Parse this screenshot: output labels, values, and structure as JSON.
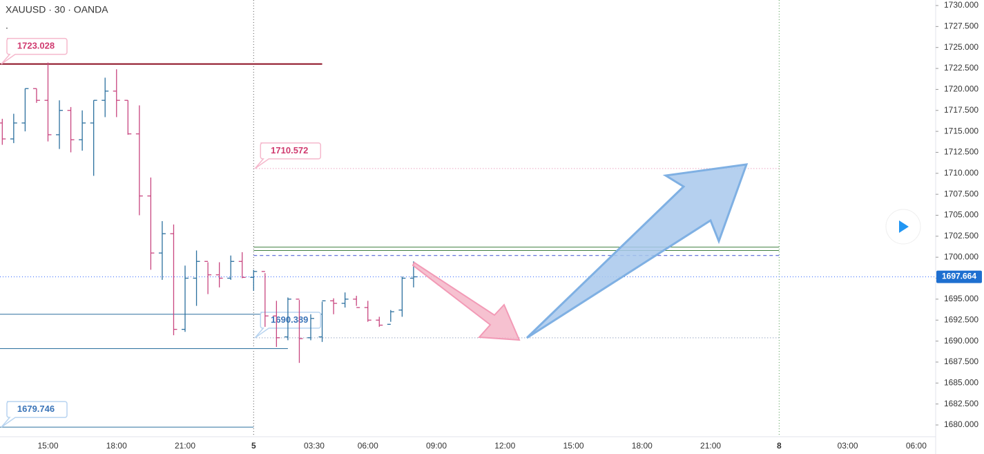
{
  "chart_data": {
    "type": "ohlc",
    "title": "XAUUSD · 30 · OANDA",
    "subtitle": ".",
    "up_color": "#2a6f9e",
    "down_color": "#c8457f",
    "bars": {
      "open": [
        1716.0,
        1714.1,
        1716.0,
        1720.1,
        1718.7,
        1714.6,
        1717.5,
        1714.0,
        1716.0,
        1718.7,
        1719.8,
        1718.7,
        1714.7,
        1707.3,
        1700.5,
        1702.8,
        1691.4,
        1697.5,
        1699.5,
        1697.9,
        1697.5,
        1699.5,
        1697.6,
        1698.3,
        1693.0,
        1690.5,
        1695.0,
        1690.4,
        1690.5,
        1694.8,
        1694.5,
        1695.0,
        1694.0,
        1692.5,
        1692.0,
        1693.7,
        1697.5
      ],
      "high": [
        1716.5,
        1717.1,
        1720.1,
        1720.1,
        1723.2,
        1718.7,
        1717.9,
        1717.5,
        1718.7,
        1721.4,
        1722.4,
        1718.7,
        1718.1,
        1709.5,
        1704.3,
        1703.9,
        1699.0,
        1700.8,
        1699.4,
        1699.4,
        1700.2,
        1700.6,
        1698.5,
        1698.1,
        1694.8,
        1695.2,
        1694.9,
        1693.2,
        1694.7,
        1695.1,
        1695.8,
        1695.4,
        1694.8,
        1692.9,
        1693.7,
        1697.7,
        1699.5
      ],
      "low": [
        1713.4,
        1713.6,
        1715.0,
        1718.4,
        1713.8,
        1712.9,
        1712.5,
        1712.7,
        1709.7,
        1716.7,
        1716.7,
        1714.6,
        1705.0,
        1698.5,
        1697.3,
        1690.7,
        1691.1,
        1694.2,
        1695.6,
        1696.4,
        1697.3,
        1697.5,
        1696.0,
        1691.7,
        1689.3,
        1690.1,
        1687.4,
        1690.1,
        1689.9,
        1693.2,
        1694.0,
        1694.2,
        1692.3,
        1691.7,
        1692.3,
        1692.9,
        1696.4
      ],
      "close": [
        1714.1,
        1716.0,
        1720.1,
        1718.7,
        1714.6,
        1717.5,
        1714.0,
        1716.0,
        1718.7,
        1719.8,
        1718.7,
        1714.7,
        1707.3,
        1700.5,
        1702.8,
        1691.4,
        1697.5,
        1699.5,
        1697.9,
        1697.5,
        1699.5,
        1697.6,
        1698.3,
        1693.0,
        1690.4,
        1695.0,
        1690.3,
        1692.7,
        1694.8,
        1694.5,
        1695.0,
        1694.0,
        1692.5,
        1691.9,
        1693.5,
        1697.5,
        1697.664
      ]
    },
    "last_price": {
      "value": 1697.664,
      "label": "1697.664"
    },
    "xlim": [
      -0.2,
      81.7
    ],
    "xticks": [
      {
        "value": 4,
        "label": "15:00"
      },
      {
        "value": 10,
        "label": "18:00"
      },
      {
        "value": 16,
        "label": "21:00"
      },
      {
        "value": 22,
        "label": "5"
      },
      {
        "value": 27.3,
        "label": "03:30"
      },
      {
        "value": 32,
        "label": "06:00"
      },
      {
        "value": 38,
        "label": "09:00"
      },
      {
        "value": 44,
        "label": "12:00"
      },
      {
        "value": 50,
        "label": "15:00"
      },
      {
        "value": 56,
        "label": "18:00"
      },
      {
        "value": 62,
        "label": "21:00"
      },
      {
        "value": 68,
        "label": "8"
      },
      {
        "value": 74,
        "label": "03:00"
      },
      {
        "value": 80,
        "label": "06:00"
      }
    ],
    "ylim": [
      1678.6,
      1730.66
    ],
    "yticks": [
      {
        "value": 1680,
        "label": "1680.000"
      },
      {
        "value": 1682.5,
        "label": "1682.500"
      },
      {
        "value": 1685,
        "label": "1685.000"
      },
      {
        "value": 1687.5,
        "label": "1687.500"
      },
      {
        "value": 1690,
        "label": "1690.000"
      },
      {
        "value": 1692.5,
        "label": "1692.500"
      },
      {
        "value": 1695,
        "label": "1695.000"
      },
      {
        "value": 1697.5,
        "label": "1697.500"
      },
      {
        "value": 1700,
        "label": "1700.000"
      },
      {
        "value": 1702.5,
        "label": "1702.500"
      },
      {
        "value": 1705,
        "label": "1705.000"
      },
      {
        "value": 1707.5,
        "label": "1707.500"
      },
      {
        "value": 1710,
        "label": "1710.000"
      },
      {
        "value": 1712.5,
        "label": "1712.500"
      },
      {
        "value": 1715,
        "label": "1715.000"
      },
      {
        "value": 1717.5,
        "label": "1717.500"
      },
      {
        "value": 1720,
        "label": "1720.000"
      },
      {
        "value": 1722.5,
        "label": "1722.500"
      },
      {
        "value": 1725,
        "label": "1725.000"
      },
      {
        "value": 1727.5,
        "label": "1727.500"
      },
      {
        "value": 1730,
        "label": "1730.000"
      }
    ],
    "levels": [
      {
        "price": {
          "value": 1723.028,
          "label": "1723.028"
        },
        "color": "#8b0d20",
        "style": "solid",
        "range": [
          -0.2,
          28
        ]
      },
      {
        "price": {
          "value": 1710.572,
          "label": "1710.572"
        },
        "color": "#e07aa5",
        "style": "dotted",
        "range": [
          22,
          68
        ]
      },
      {
        "price": 1701.2,
        "color": "#3f7f3f",
        "style": "solid",
        "range": [
          22,
          68
        ]
      },
      {
        "price": 1700.8,
        "color": "#3f7f3f",
        "style": "solid",
        "range": [
          22,
          68
        ]
      },
      {
        "price": 1700.2,
        "color": "#3a4fd0",
        "style": "dashed",
        "range": [
          22,
          68
        ]
      },
      {
        "price": 1693.2,
        "color": "#2a6f9e",
        "style": "solid",
        "range": [
          -0.2,
          28
        ]
      },
      {
        "price": {
          "value": 1690.389,
          "label": "1690.389"
        },
        "color": "#6a7fa8",
        "style": "dotted",
        "range": [
          22,
          68
        ]
      },
      {
        "price": 1689.1,
        "color": "#2a6f9e",
        "style": "solid",
        "range": [
          -0.2,
          25
        ]
      },
      {
        "price": {
          "value": 1679.746,
          "label": "1679.746"
        },
        "color": "#2a6f9e",
        "style": "solid",
        "range": [
          -0.2,
          22
        ]
      }
    ]
  }
}
